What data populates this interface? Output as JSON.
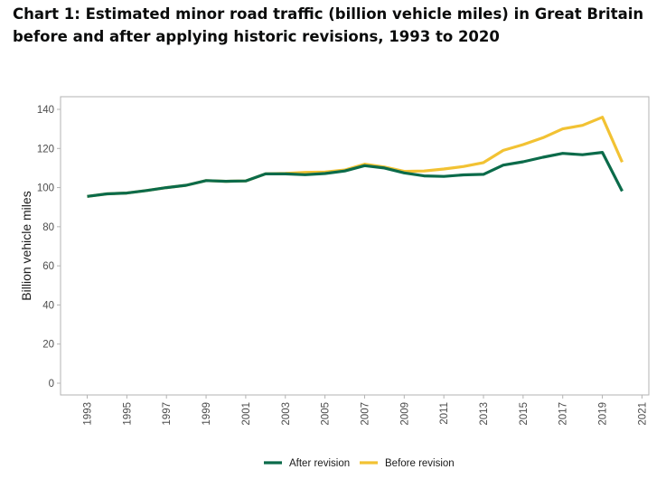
{
  "title": "Chart 1: Estimated minor road traffic (billion vehicle miles) in Great Britain before and after applying historic revisions, 1993 to 2020",
  "chart_data": {
    "type": "line",
    "ylabel": "Billion vehicle miles",
    "xlabel": "",
    "ylim": [
      0,
      140
    ],
    "xlim": [
      1992,
      2021
    ],
    "yticks": [
      0,
      20,
      40,
      60,
      80,
      100,
      120,
      140
    ],
    "xticks": [
      "1993",
      "1995",
      "1997",
      "1999",
      "2001",
      "2003",
      "2005",
      "2007",
      "2009",
      "2011",
      "2013",
      "2015",
      "2017",
      "2019",
      "2021"
    ],
    "grid": false,
    "legend_position": "bottom",
    "x": [
      1993,
      1994,
      1995,
      1996,
      1997,
      1998,
      1999,
      2000,
      2001,
      2002,
      2003,
      2004,
      2005,
      2006,
      2007,
      2008,
      2009,
      2010,
      2011,
      2012,
      2013,
      2014,
      2015,
      2016,
      2017,
      2018,
      2019,
      2020
    ],
    "series": [
      {
        "name": "Before revision",
        "color": "#f2c233",
        "values": [
          95.5,
          96.8,
          97.2,
          98.5,
          100.0,
          101.2,
          103.6,
          103.2,
          103.4,
          107.0,
          107.3,
          107.8,
          108.0,
          109.0,
          112.0,
          110.5,
          108.3,
          108.5,
          109.5,
          110.8,
          112.8,
          119.0,
          122.0,
          125.5,
          130.0,
          131.8,
          136.0,
          113.0
        ]
      },
      {
        "name": "After revision",
        "color": "#0b6b4a",
        "values": [
          95.5,
          96.8,
          97.2,
          98.5,
          100.0,
          101.2,
          103.6,
          103.2,
          103.4,
          107.0,
          107.0,
          106.6,
          107.2,
          108.5,
          111.2,
          110.0,
          107.5,
          106.0,
          105.7,
          106.5,
          106.8,
          111.5,
          113.2,
          115.5,
          117.5,
          116.8,
          118.0,
          98.2
        ]
      }
    ]
  }
}
